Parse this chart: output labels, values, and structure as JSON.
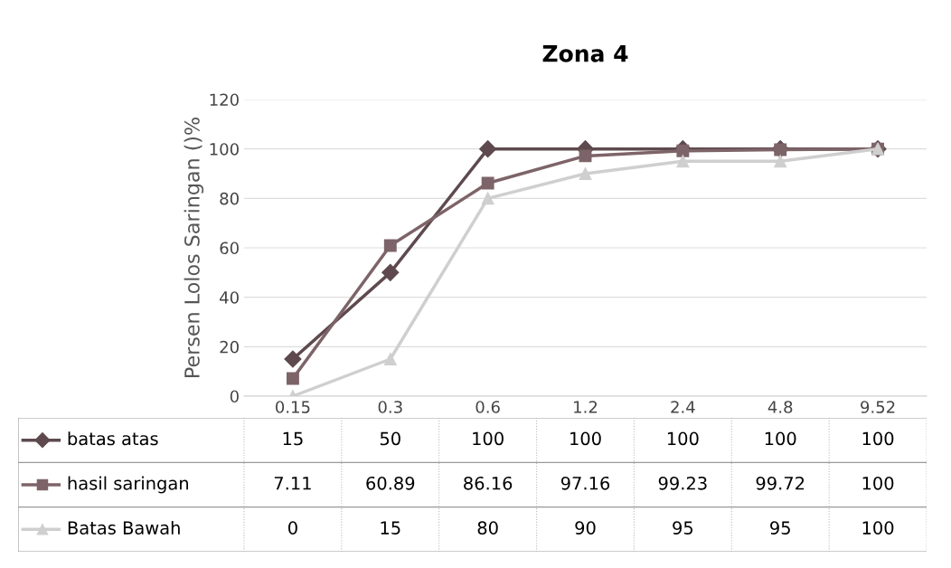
{
  "chart_data": {
    "type": "line",
    "title": "Zona 4",
    "ylabel": "Persen Lolos Saringan ()%",
    "categories": [
      "0.15",
      "0.3",
      "0.6",
      "1.2",
      "2.4",
      "4.8",
      "9.52"
    ],
    "series": [
      {
        "name": "batas atas",
        "color": "#5e4a4e",
        "marker": "diamond",
        "values": [
          15,
          50,
          100,
          100,
          100,
          100,
          100
        ]
      },
      {
        "name": "hasil saringan",
        "color": "#7d6468",
        "marker": "square",
        "values": [
          7.11,
          60.89,
          86.16,
          97.16,
          99.23,
          99.72,
          100
        ]
      },
      {
        "name": "Batas Bawah",
        "color": "#cfcfcf",
        "marker": "triangle",
        "values": [
          0,
          15,
          80,
          90,
          95,
          95,
          100
        ]
      }
    ],
    "ylim": [
      0,
      120
    ],
    "yticks": [
      0,
      20,
      40,
      60,
      80,
      100,
      120
    ],
    "grid": "y",
    "legend": "bottom left",
    "data_labels": true,
    "line_style": "solid"
  }
}
